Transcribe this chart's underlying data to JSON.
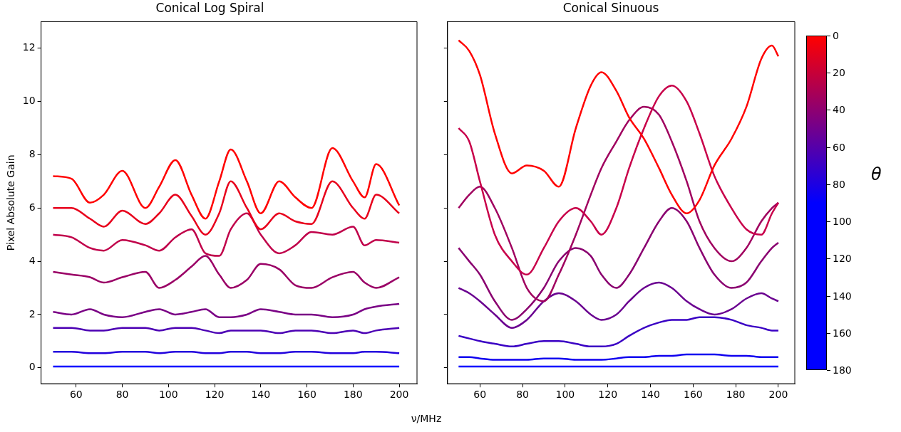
{
  "chart_data": [
    {
      "type": "line",
      "title": "Conical Log Spiral",
      "xlabel": "ν/MHz",
      "ylabel": "Pixel Absolute Gain",
      "x": [
        50,
        58,
        66,
        72,
        80,
        90,
        96,
        103,
        110,
        116,
        122,
        127,
        134,
        140,
        148,
        155,
        162,
        171,
        180,
        185,
        190,
        200
      ],
      "series": [
        {
          "color": "#ff0000",
          "values": [
            7.2,
            7.1,
            6.2,
            6.5,
            7.4,
            6.0,
            6.8,
            7.8,
            6.5,
            5.6,
            7.0,
            8.2,
            7.0,
            5.8,
            7.0,
            6.4,
            6.0,
            8.25,
            7.0,
            6.4,
            7.65,
            6.1
          ]
        },
        {
          "color": "#e8001c",
          "values": [
            6.0,
            6.0,
            5.6,
            5.3,
            5.9,
            5.4,
            5.8,
            6.5,
            5.7,
            5.0,
            5.8,
            7.0,
            6.0,
            5.2,
            5.8,
            5.5,
            5.4,
            7.0,
            6.0,
            5.6,
            6.5,
            5.8
          ]
        },
        {
          "color": "#c0004a",
          "values": [
            5.0,
            4.9,
            4.5,
            4.4,
            4.8,
            4.6,
            4.4,
            4.9,
            5.2,
            4.3,
            4.2,
            5.2,
            5.8,
            5.0,
            4.3,
            4.6,
            5.1,
            5.0,
            5.3,
            4.6,
            4.8,
            4.7
          ]
        },
        {
          "color": "#9a0066",
          "values": [
            3.6,
            3.5,
            3.4,
            3.2,
            3.4,
            3.6,
            3.0,
            3.3,
            3.8,
            4.2,
            3.5,
            3.0,
            3.3,
            3.9,
            3.7,
            3.1,
            3.0,
            3.4,
            3.6,
            3.2,
            3.0,
            3.4
          ]
        },
        {
          "color": "#7a0085",
          "values": [
            2.1,
            2.0,
            2.2,
            2.0,
            1.9,
            2.1,
            2.2,
            2.0,
            2.1,
            2.2,
            1.9,
            1.9,
            2.0,
            2.2,
            2.1,
            2.0,
            2.0,
            1.9,
            2.0,
            2.2,
            2.3,
            2.4
          ]
        },
        {
          "color": "#4c00b4",
          "values": [
            1.5,
            1.5,
            1.4,
            1.4,
            1.5,
            1.5,
            1.4,
            1.5,
            1.5,
            1.4,
            1.3,
            1.4,
            1.4,
            1.4,
            1.3,
            1.4,
            1.4,
            1.3,
            1.4,
            1.3,
            1.4,
            1.5
          ]
        },
        {
          "color": "#2200dd",
          "values": [
            0.6,
            0.6,
            0.55,
            0.55,
            0.6,
            0.6,
            0.55,
            0.6,
            0.6,
            0.55,
            0.55,
            0.6,
            0.6,
            0.55,
            0.55,
            0.6,
            0.6,
            0.55,
            0.55,
            0.6,
            0.6,
            0.55
          ]
        },
        {
          "color": "#0000ff",
          "values": [
            0.05,
            0.05,
            0.05,
            0.05,
            0.05,
            0.05,
            0.05,
            0.05,
            0.05,
            0.05,
            0.05,
            0.05,
            0.05,
            0.05,
            0.05,
            0.05,
            0.05,
            0.05,
            0.05,
            0.05,
            0.05,
            0.05
          ]
        }
      ],
      "xlim": [
        44.8,
        207.7
      ],
      "xticks": [
        60,
        80,
        100,
        120,
        140,
        160,
        180,
        200
      ],
      "ylim": [
        -0.6,
        13.0
      ],
      "yticks": [
        0,
        2,
        4,
        6,
        8,
        10,
        12
      ],
      "grid": false,
      "legend": false,
      "marker": "none",
      "line_style": "solid"
    },
    {
      "type": "line",
      "title": "Conical Sinuous",
      "x": [
        50,
        55,
        60,
        67,
        75,
        82,
        90,
        97,
        105,
        112,
        117,
        124,
        130,
        137,
        144,
        150,
        157,
        163,
        170,
        178,
        185,
        192,
        197,
        200
      ],
      "series": [
        {
          "color": "#ff0000",
          "values": [
            12.3,
            11.9,
            11.0,
            8.8,
            7.3,
            7.6,
            7.4,
            6.8,
            9.0,
            10.6,
            11.1,
            10.4,
            9.4,
            8.6,
            7.5,
            6.5,
            5.8,
            6.3,
            7.6,
            8.6,
            9.8,
            11.6,
            12.1,
            11.7
          ]
        },
        {
          "color": "#c8004a",
          "values": [
            9.0,
            8.5,
            7.0,
            5.0,
            4.0,
            3.5,
            4.5,
            5.5,
            6.0,
            5.5,
            5.0,
            6.0,
            7.5,
            9.0,
            10.2,
            10.6,
            10.0,
            8.8,
            7.2,
            6.0,
            5.2,
            5.0,
            5.8,
            6.2
          ]
        },
        {
          "color": "#a0005f",
          "values": [
            6.0,
            6.5,
            6.8,
            6.0,
            4.5,
            3.0,
            2.5,
            3.5,
            5.0,
            6.5,
            7.5,
            8.5,
            9.3,
            9.8,
            9.5,
            8.5,
            7.0,
            5.5,
            4.5,
            4.0,
            4.5,
            5.5,
            6.0,
            6.2
          ]
        },
        {
          "color": "#8a0070",
          "values": [
            4.5,
            4.0,
            3.5,
            2.5,
            1.8,
            2.2,
            3.0,
            4.0,
            4.5,
            4.2,
            3.5,
            3.0,
            3.5,
            4.5,
            5.5,
            6.0,
            5.5,
            4.5,
            3.5,
            3.0,
            3.2,
            4.0,
            4.5,
            4.7
          ]
        },
        {
          "color": "#6a0090",
          "values": [
            3.0,
            2.8,
            2.5,
            2.0,
            1.5,
            1.8,
            2.5,
            2.8,
            2.5,
            2.0,
            1.8,
            2.0,
            2.5,
            3.0,
            3.2,
            3.0,
            2.5,
            2.2,
            2.0,
            2.2,
            2.6,
            2.8,
            2.6,
            2.5
          ]
        },
        {
          "color": "#3a00c4",
          "values": [
            1.2,
            1.1,
            1.0,
            0.9,
            0.8,
            0.9,
            1.0,
            1.0,
            0.9,
            0.8,
            0.8,
            0.9,
            1.2,
            1.5,
            1.7,
            1.8,
            1.8,
            1.9,
            1.9,
            1.8,
            1.6,
            1.5,
            1.4,
            1.4
          ]
        },
        {
          "color": "#1000ef",
          "values": [
            0.4,
            0.4,
            0.35,
            0.3,
            0.3,
            0.3,
            0.35,
            0.35,
            0.3,
            0.3,
            0.3,
            0.35,
            0.4,
            0.4,
            0.45,
            0.45,
            0.5,
            0.5,
            0.5,
            0.45,
            0.45,
            0.4,
            0.4,
            0.4
          ]
        },
        {
          "color": "#0000ff",
          "values": [
            0.05,
            0.05,
            0.05,
            0.05,
            0.05,
            0.05,
            0.05,
            0.05,
            0.05,
            0.05,
            0.05,
            0.05,
            0.05,
            0.05,
            0.05,
            0.05,
            0.05,
            0.05,
            0.05,
            0.05,
            0.05,
            0.05,
            0.05,
            0.05
          ]
        }
      ],
      "xlim": [
        44.8,
        207.7
      ],
      "xticks": [
        60,
        80,
        100,
        120,
        140,
        160,
        180,
        200
      ],
      "ylim": [
        -0.6,
        13.0
      ],
      "yticks": [
        0,
        2,
        4,
        6,
        8,
        10,
        12
      ],
      "tick_labels": "x",
      "clabel": "θ",
      "clim": [
        180,
        0
      ],
      "cticks": [
        0,
        20,
        40,
        60,
        80,
        100,
        120,
        140,
        160,
        180
      ],
      "grid": false,
      "legend": false,
      "marker": "none",
      "line_style": "solid"
    }
  ]
}
